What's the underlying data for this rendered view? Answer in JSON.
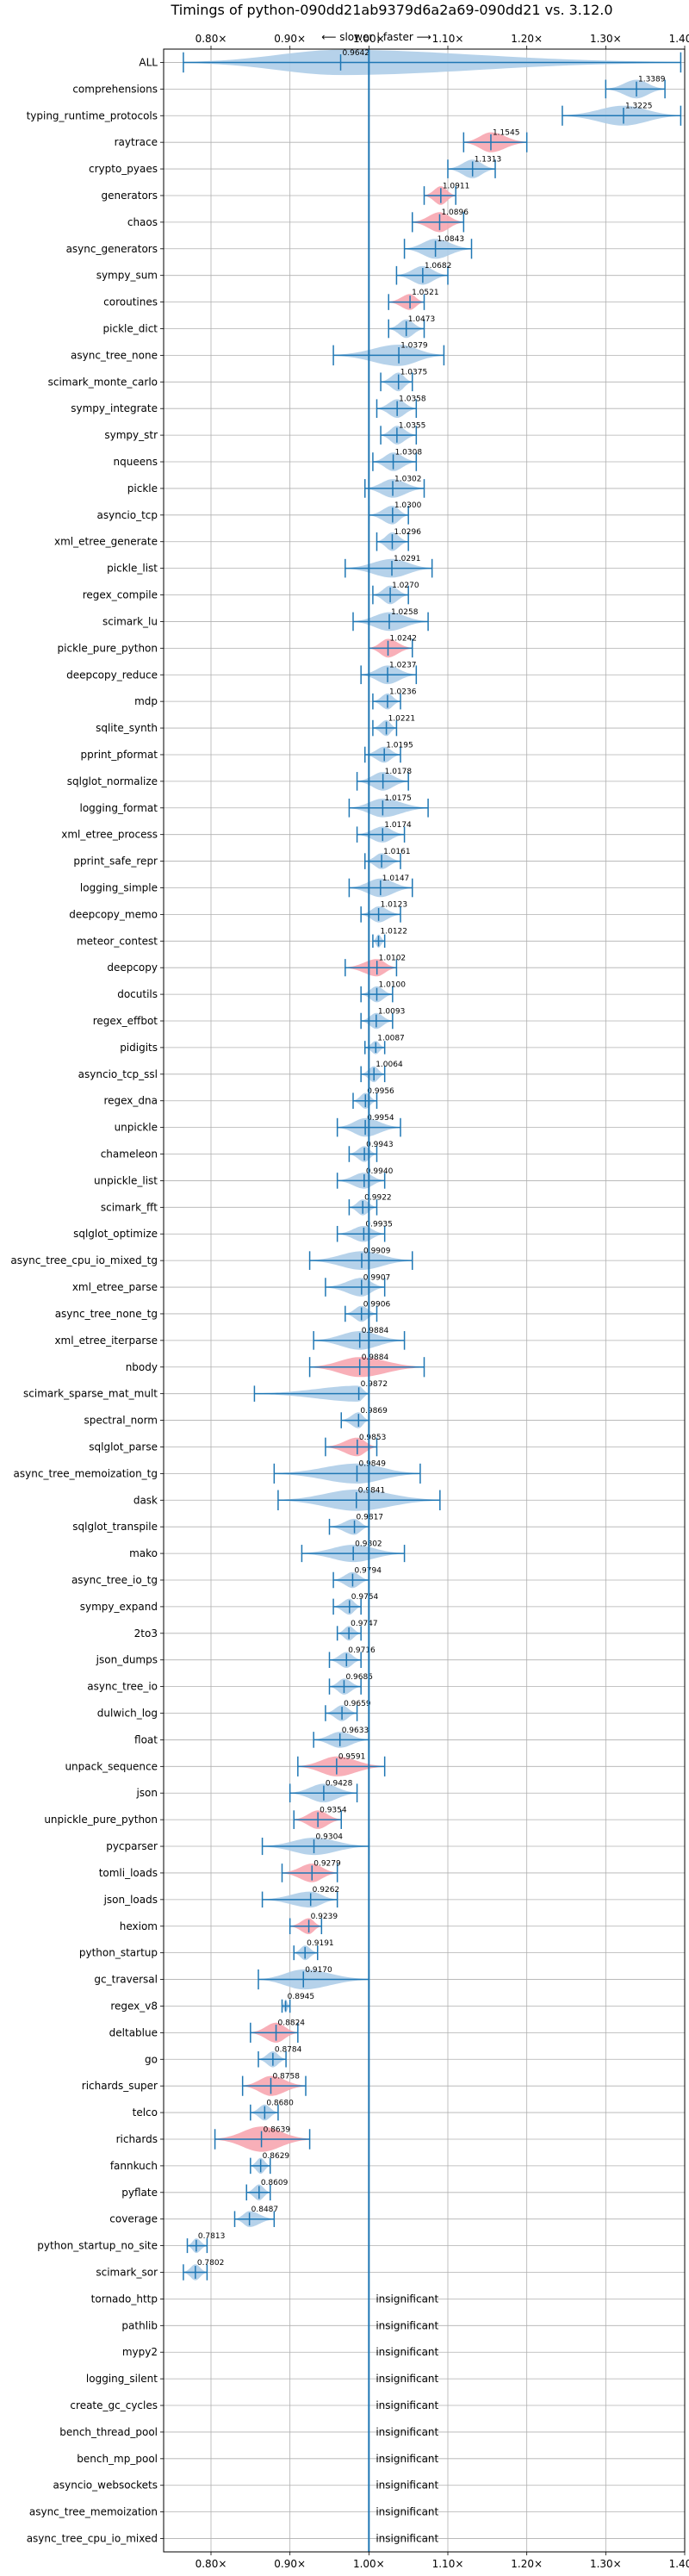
{
  "chart_data": {
    "type": "violin",
    "title": "Timings of python-090dd21ab9379d6a2a69-090dd21 vs. 3.12.0",
    "direction_label": "⟵ slower | faster ⟶",
    "xlim": [
      0.74,
      1.4
    ],
    "xticks": [
      0.8,
      0.9,
      1.0,
      1.1,
      1.2,
      1.3,
      1.4
    ],
    "xtick_labels": [
      "0.80×",
      "0.90×",
      "1.00×",
      "1.10×",
      "1.20×",
      "1.30×",
      "1.40×"
    ],
    "grid": true,
    "colors": {
      "normal": "#aecde8",
      "highlight": "#f7a6b0",
      "line": "#1f77b4",
      "grid": "#b0b0b0"
    },
    "rows": [
      {
        "name": "ALL",
        "value": 0.9642,
        "lo": 0.765,
        "hi": 1.395,
        "width": 0.95,
        "color": "normal"
      },
      {
        "name": "comprehensions",
        "value": 1.3389,
        "lo": 1.3,
        "hi": 1.375,
        "width": 0.7,
        "color": "normal"
      },
      {
        "name": "typing_runtime_protocols",
        "value": 1.3225,
        "lo": 1.245,
        "hi": 1.395,
        "width": 0.75,
        "color": "normal"
      },
      {
        "name": "raytrace",
        "value": 1.1545,
        "lo": 1.12,
        "hi": 1.2,
        "width": 0.75,
        "color": "highlight"
      },
      {
        "name": "crypto_pyaes",
        "value": 1.1313,
        "lo": 1.1,
        "hi": 1.16,
        "width": 0.7,
        "color": "normal"
      },
      {
        "name": "generators",
        "value": 1.0911,
        "lo": 1.07,
        "hi": 1.11,
        "width": 0.7,
        "color": "highlight"
      },
      {
        "name": "chaos",
        "value": 1.0896,
        "lo": 1.055,
        "hi": 1.12,
        "width": 0.75,
        "color": "highlight"
      },
      {
        "name": "async_generators",
        "value": 1.0843,
        "lo": 1.045,
        "hi": 1.13,
        "width": 0.75,
        "color": "normal"
      },
      {
        "name": "sympy_sum",
        "value": 1.0682,
        "lo": 1.035,
        "hi": 1.1,
        "width": 0.7,
        "color": "normal"
      },
      {
        "name": "coroutines",
        "value": 1.0521,
        "lo": 1.025,
        "hi": 1.07,
        "width": 0.6,
        "color": "highlight"
      },
      {
        "name": "pickle_dict",
        "value": 1.0473,
        "lo": 1.025,
        "hi": 1.07,
        "width": 0.7,
        "color": "normal"
      },
      {
        "name": "async_tree_none",
        "value": 1.0379,
        "lo": 0.955,
        "hi": 1.095,
        "width": 0.8,
        "color": "normal"
      },
      {
        "name": "scimark_monte_carlo",
        "value": 1.0375,
        "lo": 1.015,
        "hi": 1.055,
        "width": 0.7,
        "color": "normal"
      },
      {
        "name": "sympy_integrate",
        "value": 1.0358,
        "lo": 1.01,
        "hi": 1.06,
        "width": 0.7,
        "color": "normal"
      },
      {
        "name": "sympy_str",
        "value": 1.0355,
        "lo": 1.015,
        "hi": 1.06,
        "width": 0.7,
        "color": "normal"
      },
      {
        "name": "nqueens",
        "value": 1.0308,
        "lo": 1.005,
        "hi": 1.06,
        "width": 0.7,
        "color": "normal"
      },
      {
        "name": "pickle",
        "value": 1.0302,
        "lo": 0.995,
        "hi": 1.07,
        "width": 0.7,
        "color": "normal"
      },
      {
        "name": "asyncio_tcp",
        "value": 1.03,
        "lo": 1.0,
        "hi": 1.05,
        "width": 0.7,
        "color": "normal"
      },
      {
        "name": "xml_etree_generate",
        "value": 1.0296,
        "lo": 1.01,
        "hi": 1.05,
        "width": 0.7,
        "color": "normal"
      },
      {
        "name": "pickle_list",
        "value": 1.0291,
        "lo": 0.97,
        "hi": 1.08,
        "width": 0.7,
        "color": "normal"
      },
      {
        "name": "regex_compile",
        "value": 1.027,
        "lo": 1.005,
        "hi": 1.05,
        "width": 0.7,
        "color": "normal"
      },
      {
        "name": "scimark_lu",
        "value": 1.0258,
        "lo": 0.98,
        "hi": 1.075,
        "width": 0.7,
        "color": "normal"
      },
      {
        "name": "pickle_pure_python",
        "value": 1.0242,
        "lo": 1.0,
        "hi": 1.055,
        "width": 0.7,
        "color": "highlight"
      },
      {
        "name": "deepcopy_reduce",
        "value": 1.0237,
        "lo": 0.99,
        "hi": 1.06,
        "width": 0.7,
        "color": "normal"
      },
      {
        "name": "mdp",
        "value": 1.0236,
        "lo": 1.005,
        "hi": 1.04,
        "width": 0.6,
        "color": "normal"
      },
      {
        "name": "sqlite_synth",
        "value": 1.0221,
        "lo": 1.005,
        "hi": 1.035,
        "width": 0.6,
        "color": "normal"
      },
      {
        "name": "pprint_pformat",
        "value": 1.0195,
        "lo": 0.995,
        "hi": 1.04,
        "width": 0.6,
        "color": "normal"
      },
      {
        "name": "sqlglot_normalize",
        "value": 1.0178,
        "lo": 0.985,
        "hi": 1.05,
        "width": 0.7,
        "color": "normal"
      },
      {
        "name": "logging_format",
        "value": 1.0175,
        "lo": 0.975,
        "hi": 1.075,
        "width": 0.7,
        "color": "normal"
      },
      {
        "name": "xml_etree_process",
        "value": 1.0174,
        "lo": 0.985,
        "hi": 1.045,
        "width": 0.6,
        "color": "normal"
      },
      {
        "name": "pprint_safe_repr",
        "value": 1.0161,
        "lo": 0.995,
        "hi": 1.04,
        "width": 0.6,
        "color": "normal"
      },
      {
        "name": "logging_simple",
        "value": 1.0147,
        "lo": 0.975,
        "hi": 1.055,
        "width": 0.7,
        "color": "normal"
      },
      {
        "name": "deepcopy_memo",
        "value": 1.0123,
        "lo": 0.99,
        "hi": 1.04,
        "width": 0.6,
        "color": "normal"
      },
      {
        "name": "meteor_contest",
        "value": 1.0122,
        "lo": 1.005,
        "hi": 1.02,
        "width": 0.5,
        "color": "normal"
      },
      {
        "name": "deepcopy",
        "value": 1.0102,
        "lo": 0.97,
        "hi": 1.035,
        "width": 0.65,
        "color": "highlight"
      },
      {
        "name": "docutils",
        "value": 1.01,
        "lo": 0.99,
        "hi": 1.03,
        "width": 0.6,
        "color": "normal"
      },
      {
        "name": "regex_effbot",
        "value": 1.0093,
        "lo": 0.99,
        "hi": 1.03,
        "width": 0.6,
        "color": "normal"
      },
      {
        "name": "pidigits",
        "value": 1.0087,
        "lo": 0.995,
        "hi": 1.02,
        "width": 0.5,
        "color": "normal"
      },
      {
        "name": "asyncio_tcp_ssl",
        "value": 1.0064,
        "lo": 0.99,
        "hi": 1.02,
        "width": 0.6,
        "color": "normal"
      },
      {
        "name": "regex_dna",
        "value": 0.9956,
        "lo": 0.98,
        "hi": 1.01,
        "width": 0.6,
        "color": "normal"
      },
      {
        "name": "unpickle",
        "value": 0.9954,
        "lo": 0.96,
        "hi": 1.04,
        "width": 0.7,
        "color": "normal"
      },
      {
        "name": "chameleon",
        "value": 0.9943,
        "lo": 0.975,
        "hi": 1.01,
        "width": 0.6,
        "color": "normal"
      },
      {
        "name": "unpickle_list",
        "value": 0.994,
        "lo": 0.96,
        "hi": 1.02,
        "width": 0.6,
        "color": "normal"
      },
      {
        "name": "scimark_fft",
        "value": 0.9922,
        "lo": 0.975,
        "hi": 1.01,
        "width": 0.6,
        "color": "normal"
      },
      {
        "name": "sqlglot_optimize",
        "value": 0.9935,
        "lo": 0.96,
        "hi": 1.02,
        "width": 0.6,
        "color": "normal"
      },
      {
        "name": "async_tree_cpu_io_mixed_tg",
        "value": 0.9909,
        "lo": 0.925,
        "hi": 1.055,
        "width": 0.7,
        "color": "normal"
      },
      {
        "name": "xml_etree_parse",
        "value": 0.9907,
        "lo": 0.945,
        "hi": 1.02,
        "width": 0.7,
        "color": "normal"
      },
      {
        "name": "async_tree_none_tg",
        "value": 0.9906,
        "lo": 0.97,
        "hi": 1.01,
        "width": 0.6,
        "color": "normal"
      },
      {
        "name": "xml_etree_iterparse",
        "value": 0.9884,
        "lo": 0.93,
        "hi": 1.045,
        "width": 0.7,
        "color": "normal"
      },
      {
        "name": "nbody",
        "value": 0.9884,
        "lo": 0.925,
        "hi": 1.07,
        "width": 0.75,
        "color": "highlight"
      },
      {
        "name": "scimark_sparse_mat_mult",
        "value": 0.9872,
        "lo": 0.855,
        "hi": 1.0,
        "width": 0.6,
        "color": "normal"
      },
      {
        "name": "spectral_norm",
        "value": 0.9869,
        "lo": 0.965,
        "hi": 1.0,
        "width": 0.6,
        "color": "normal"
      },
      {
        "name": "sqlglot_parse",
        "value": 0.9853,
        "lo": 0.945,
        "hi": 1.01,
        "width": 0.7,
        "color": "highlight"
      },
      {
        "name": "async_tree_memoization_tg",
        "value": 0.9849,
        "lo": 0.88,
        "hi": 1.065,
        "width": 0.75,
        "color": "normal"
      },
      {
        "name": "dask",
        "value": 0.9841,
        "lo": 0.885,
        "hi": 1.09,
        "width": 0.8,
        "color": "normal"
      },
      {
        "name": "sqlglot_transpile",
        "value": 0.9817,
        "lo": 0.95,
        "hi": 1.0,
        "width": 0.6,
        "color": "normal"
      },
      {
        "name": "mako",
        "value": 0.9802,
        "lo": 0.915,
        "hi": 1.045,
        "width": 0.65,
        "color": "normal"
      },
      {
        "name": "async_tree_io_tg",
        "value": 0.9794,
        "lo": 0.955,
        "hi": 1.0,
        "width": 0.6,
        "color": "normal"
      },
      {
        "name": "sympy_expand",
        "value": 0.9754,
        "lo": 0.955,
        "hi": 0.99,
        "width": 0.6,
        "color": "normal"
      },
      {
        "name": "2to3",
        "value": 0.9747,
        "lo": 0.96,
        "hi": 0.99,
        "width": 0.55,
        "color": "normal"
      },
      {
        "name": "json_dumps",
        "value": 0.9716,
        "lo": 0.95,
        "hi": 0.99,
        "width": 0.6,
        "color": "normal"
      },
      {
        "name": "async_tree_io",
        "value": 0.9685,
        "lo": 0.95,
        "hi": 0.99,
        "width": 0.6,
        "color": "normal"
      },
      {
        "name": "dulwich_log",
        "value": 0.9659,
        "lo": 0.945,
        "hi": 0.985,
        "width": 0.6,
        "color": "normal"
      },
      {
        "name": "float",
        "value": 0.9633,
        "lo": 0.93,
        "hi": 1.0,
        "width": 0.6,
        "color": "normal"
      },
      {
        "name": "unpack_sequence",
        "value": 0.9591,
        "lo": 0.91,
        "hi": 1.02,
        "width": 0.75,
        "color": "highlight"
      },
      {
        "name": "json",
        "value": 0.9428,
        "lo": 0.9,
        "hi": 0.985,
        "width": 0.7,
        "color": "normal"
      },
      {
        "name": "unpickle_pure_python",
        "value": 0.9354,
        "lo": 0.905,
        "hi": 0.965,
        "width": 0.7,
        "color": "highlight"
      },
      {
        "name": "pycparser",
        "value": 0.9304,
        "lo": 0.865,
        "hi": 1.0,
        "width": 0.65,
        "color": "normal"
      },
      {
        "name": "tomli_loads",
        "value": 0.9279,
        "lo": 0.89,
        "hi": 0.96,
        "width": 0.7,
        "color": "highlight"
      },
      {
        "name": "json_loads",
        "value": 0.9262,
        "lo": 0.865,
        "hi": 0.96,
        "width": 0.6,
        "color": "normal"
      },
      {
        "name": "hexiom",
        "value": 0.9239,
        "lo": 0.9,
        "hi": 0.94,
        "width": 0.6,
        "color": "highlight"
      },
      {
        "name": "python_startup",
        "value": 0.9191,
        "lo": 0.905,
        "hi": 0.935,
        "width": 0.55,
        "color": "normal"
      },
      {
        "name": "gc_traversal",
        "value": 0.917,
        "lo": 0.86,
        "hi": 1.0,
        "width": 0.75,
        "color": "normal"
      },
      {
        "name": "regex_v8",
        "value": 0.8945,
        "lo": 0.89,
        "hi": 0.9,
        "width": 0.5,
        "color": "normal"
      },
      {
        "name": "deltablue",
        "value": 0.8824,
        "lo": 0.85,
        "hi": 0.91,
        "width": 0.75,
        "color": "highlight"
      },
      {
        "name": "go",
        "value": 0.8784,
        "lo": 0.86,
        "hi": 0.895,
        "width": 0.6,
        "color": "normal"
      },
      {
        "name": "richards_super",
        "value": 0.8758,
        "lo": 0.84,
        "hi": 0.92,
        "width": 0.75,
        "color": "highlight"
      },
      {
        "name": "telco",
        "value": 0.868,
        "lo": 0.85,
        "hi": 0.885,
        "width": 0.6,
        "color": "normal"
      },
      {
        "name": "richards",
        "value": 0.8639,
        "lo": 0.805,
        "hi": 0.925,
        "width": 0.95,
        "color": "highlight"
      },
      {
        "name": "fannkuch",
        "value": 0.8629,
        "lo": 0.85,
        "hi": 0.875,
        "width": 0.6,
        "color": "normal"
      },
      {
        "name": "pyflate",
        "value": 0.8609,
        "lo": 0.845,
        "hi": 0.875,
        "width": 0.6,
        "color": "normal"
      },
      {
        "name": "coverage",
        "value": 0.8487,
        "lo": 0.83,
        "hi": 0.88,
        "width": 0.6,
        "color": "normal"
      },
      {
        "name": "python_startup_no_site",
        "value": 0.7813,
        "lo": 0.77,
        "hi": 0.795,
        "width": 0.55,
        "color": "normal"
      },
      {
        "name": "scimark_sor",
        "value": 0.7802,
        "lo": 0.765,
        "hi": 0.795,
        "width": 0.6,
        "color": "normal"
      },
      {
        "name": "tornado_http",
        "insignificant": true
      },
      {
        "name": "pathlib",
        "insignificant": true
      },
      {
        "name": "mypy2",
        "insignificant": true
      },
      {
        "name": "logging_silent",
        "insignificant": true
      },
      {
        "name": "create_gc_cycles",
        "insignificant": true
      },
      {
        "name": "bench_thread_pool",
        "insignificant": true
      },
      {
        "name": "bench_mp_pool",
        "insignificant": true
      },
      {
        "name": "asyncio_websockets",
        "insignificant": true
      },
      {
        "name": "async_tree_memoization",
        "insignificant": true
      },
      {
        "name": "async_tree_cpu_io_mixed",
        "insignificant": true
      }
    ],
    "insignificant_label": "insignificant"
  }
}
